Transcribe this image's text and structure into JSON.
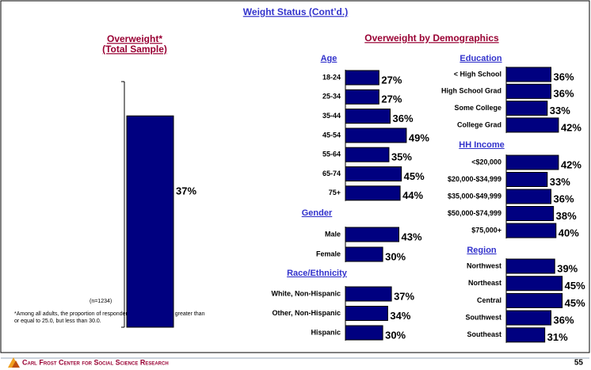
{
  "page": {
    "title": "Weight Status (Cont’d.)",
    "heading": "Overweight by Demographics",
    "footnote": [
      "*Among all adults, the proportion of respondents whose BMI was greater than",
      "or equal to 25.0, but less than 30.0."
    ],
    "footer": "Carl Frost Center for Social Science Research",
    "page_number": "55"
  },
  "chart_data": [
    {
      "type": "bar",
      "title": "Overweight*",
      "subtitle": "(Total Sample)",
      "annotation": "(n=1234)",
      "values": [
        37
      ],
      "value_labels": [
        "37%"
      ],
      "ylim": [
        0,
        43
      ],
      "color": "#000080"
    },
    {
      "type": "barh",
      "title": "Age",
      "categories": [
        "18-24",
        "25-34",
        "35-44",
        "45-54",
        "55-64",
        "65-74",
        "75+"
      ],
      "values": [
        27,
        27,
        36,
        49,
        35,
        45,
        44
      ],
      "value_labels": [
        "27%",
        "27%",
        "36%",
        "49%",
        "35%",
        "45%",
        "44%"
      ],
      "xlim": [
        0,
        50
      ],
      "color": "#000080"
    },
    {
      "type": "barh",
      "title": "Gender",
      "categories": [
        "Male",
        "Female"
      ],
      "values": [
        43,
        30
      ],
      "value_labels": [
        "43%",
        "30%"
      ],
      "xlim": [
        0,
        50
      ],
      "color": "#000080"
    },
    {
      "type": "barh",
      "title": "Race/Ethnicity",
      "categories": [
        "White, Non-Hispanic",
        "Other, Non-Hispanic",
        "Hispanic"
      ],
      "values": [
        37,
        34,
        30
      ],
      "value_labels": [
        "37%",
        "34%",
        "30%"
      ],
      "xlim": [
        0,
        50
      ],
      "color": "#000080"
    },
    {
      "type": "barh",
      "title": "Education",
      "categories": [
        "< High School",
        "High School Grad",
        "Some College",
        "College Grad"
      ],
      "values": [
        36,
        36,
        33,
        42
      ],
      "value_labels": [
        "36%",
        "36%",
        "33%",
        "42%"
      ],
      "xlim": [
        0,
        50
      ],
      "color": "#000080"
    },
    {
      "type": "barh",
      "title": "HH Income",
      "categories": [
        "<$20,000",
        "$20,000-$34,999",
        "$35,000-$49,999",
        "$50,000-$74,999",
        "$75,000+"
      ],
      "values": [
        42,
        33,
        36,
        38,
        40
      ],
      "value_labels": [
        "42%",
        "33%",
        "36%",
        "38%",
        "40%"
      ],
      "xlim": [
        0,
        50
      ],
      "color": "#000080"
    },
    {
      "type": "barh",
      "title": "Region",
      "categories": [
        "Northwest",
        "Northeast",
        "Central",
        "Southwest",
        "Southeast"
      ],
      "values": [
        39,
        45,
        45,
        36,
        31
      ],
      "value_labels": [
        "39%",
        "45%",
        "45%",
        "36%",
        "31%"
      ],
      "xlim": [
        0,
        50
      ],
      "color": "#000080"
    }
  ]
}
